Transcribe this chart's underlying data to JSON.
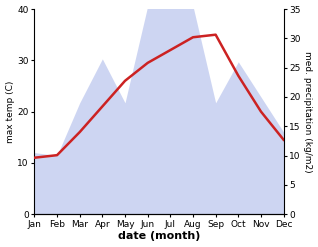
{
  "months": [
    "Jan",
    "Feb",
    "Mar",
    "Apr",
    "May",
    "Jun",
    "Jul",
    "Aug",
    "Sep",
    "Oct",
    "Nov",
    "Dec"
  ],
  "max_temp": [
    11.0,
    11.5,
    16.0,
    21.0,
    26.0,
    29.5,
    32.0,
    34.5,
    35.0,
    27.0,
    20.0,
    14.5
  ],
  "precipitation": [
    10.5,
    10.0,
    19.0,
    26.5,
    19.0,
    35.5,
    36.0,
    35.5,
    19.0,
    26.0,
    20.0,
    14.0
  ],
  "temp_color": "#cc2222",
  "precip_fill_color": "#c5cef0",
  "precip_fill_alpha": 0.85,
  "temp_ylim": [
    0,
    40
  ],
  "precip_ylim": [
    0,
    35
  ],
  "temp_yticks": [
    0,
    10,
    20,
    30,
    40
  ],
  "precip_yticks": [
    0,
    5,
    10,
    15,
    20,
    25,
    30,
    35
  ],
  "ylabel_left": "max temp (C)",
  "ylabel_right": "med. precipitation (kg/m2)",
  "xlabel": "date (month)"
}
